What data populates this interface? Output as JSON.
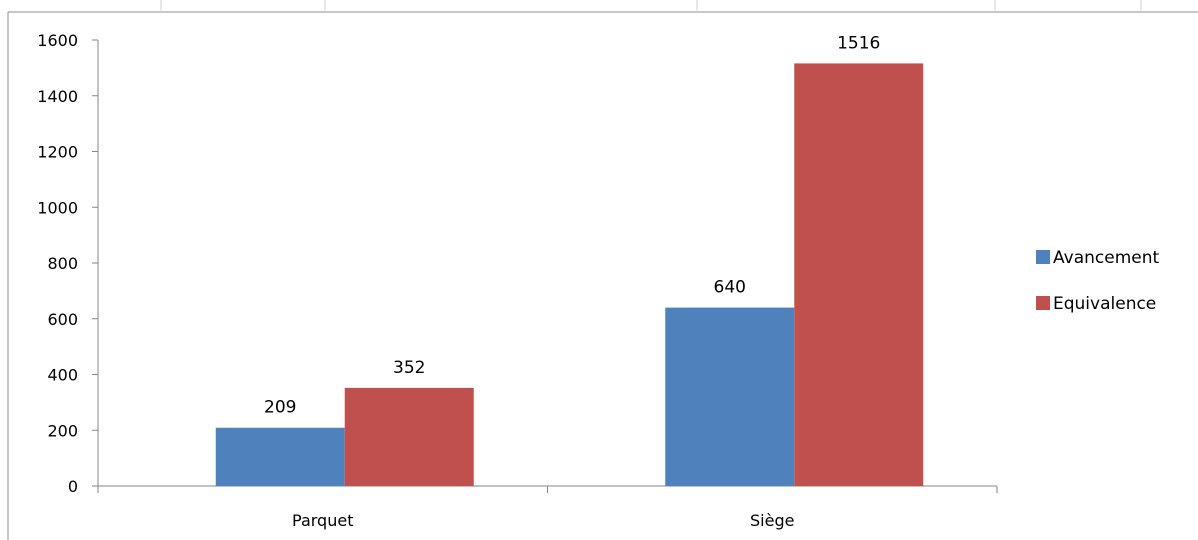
{
  "chart_data": {
    "type": "bar",
    "categories": [
      "Parquet",
      "Siège"
    ],
    "series": [
      {
        "name": "Avancement",
        "values": [
          209,
          640
        ],
        "color": "#4F81BD"
      },
      {
        "name": "Equivalence",
        "values": [
          352,
          1516
        ],
        "color": "#C0504D"
      }
    ],
    "ylim": [
      0,
      1600
    ],
    "yticks": [
      0,
      200,
      400,
      600,
      800,
      1000,
      1200,
      1400,
      1600
    ],
    "grid": false,
    "legend_position": "right",
    "data_labels": true
  }
}
